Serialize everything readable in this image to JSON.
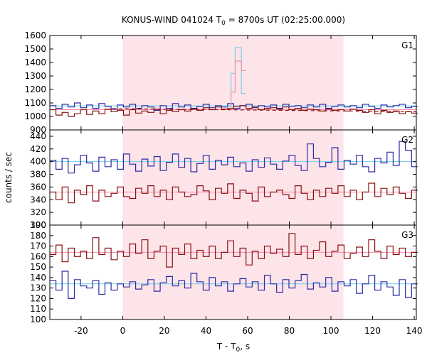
{
  "chart_data": {
    "type": "line",
    "title_main": "KONUS-WIND 041024 T",
    "title_sub": "0",
    "title_rest": " = 8700s UT (02:25:00.000)",
    "xlabel_main": "T - T",
    "xlabel_sub": "0",
    "xlabel_rest": ", s",
    "ylabel": "counts / sec",
    "xlim": [
      -35,
      141
    ],
    "xticks": [
      -20,
      0,
      20,
      40,
      60,
      80,
      100,
      120,
      140
    ],
    "shaded_interval": [
      0,
      106
    ],
    "colors": {
      "blue": "#2b2ba8",
      "dark_red": "#8b1010",
      "light_blue": "#6fcdea",
      "pink": "#f08aa8",
      "shade": "#fde4e8"
    },
    "panels": [
      {
        "label": "G1",
        "ylim": [
          900,
          1600
        ],
        "yticks": [
          900,
          1000,
          1100,
          1200,
          1300,
          1400,
          1500,
          1600
        ],
        "x_start": -35,
        "step": 2.944,
        "bg_blue": 1078,
        "bg_red": 1050,
        "series": [
          {
            "name": "blue",
            "color": "blue",
            "values": [
              1080,
              1060,
              1090,
              1070,
              1100,
              1065,
              1085,
              1060,
              1095,
              1075,
              1055,
              1085,
              1070,
              1090,
              1060,
              1080,
              1070,
              1045,
              1080,
              1060,
              1095,
              1070,
              1085,
              1060,
              1075,
              1090,
              1065,
              1080,
              1070,
              1095,
              1060,
              1080,
              1090,
              1065,
              1080,
              1070,
              1085,
              1060,
              1090,
              1075,
              1080,
              1065,
              1085,
              1070,
              1090,
              1060,
              1075,
              1085,
              1070,
              1080,
              1065,
              1090,
              1075,
              1060,
              1085,
              1070,
              1080,
              1090,
              1065,
              1075
            ]
          },
          {
            "name": "dark_red",
            "color": "dark_red",
            "values": [
              1050,
              1010,
              1030,
              1000,
              1020,
              1050,
              1015,
              1040,
              1020,
              1055,
              1035,
              1045,
              1010,
              1050,
              1025,
              1040,
              1030,
              1055,
              1020,
              1045,
              1035,
              1050,
              1040,
              1055,
              1045,
              1065,
              1050,
              1070,
              1055,
              1060,
              1075,
              1080,
              1060,
              1070,
              1050,
              1060,
              1065,
              1055,
              1070,
              1050,
              1060,
              1045,
              1055,
              1050,
              1040,
              1055,
              1045,
              1050,
              1040,
              1055,
              1045,
              1030,
              1050,
              1020,
              1045,
              1030,
              1040,
              1020,
              1035,
              1025
            ]
          }
        ],
        "thin": [
          {
            "name": "light_blue",
            "color": "light_blue",
            "x": [
              50,
              52,
              54,
              57,
              59
            ],
            "values": [
              1075,
              1320,
              1510,
              1170,
              1075
            ]
          },
          {
            "name": "pink",
            "color": "pink",
            "x": [
              50,
              52,
              54,
              57,
              59
            ],
            "values": [
              1050,
              1180,
              1410,
              1340,
              1050
            ]
          }
        ]
      },
      {
        "label": "G2",
        "ylim": [
          300,
          450
        ],
        "yticks": [
          300,
          320,
          340,
          360,
          380,
          400,
          420,
          440
        ],
        "x_start": -35,
        "step": 2.944,
        "bg_blue": 400,
        "bg_red": 352,
        "series": [
          {
            "name": "blue",
            "color": "blue",
            "values": [
              402,
              388,
              405,
              382,
              395,
              410,
              398,
              385,
              407,
              392,
              403,
              388,
              412,
              396,
              385,
              404,
              393,
              408,
              386,
              399,
              412,
              391,
              405,
              384,
              397,
              410,
              388,
              402,
              395,
              407,
              392,
              398,
              385,
              403,
              391,
              406,
              396,
              388,
              401,
              410,
              394,
              386,
              428,
              405,
              392,
              399,
              422,
              388,
              402,
              396,
              410,
              392,
              384,
              405,
              398,
              415,
              394,
              432,
              418,
              392
            ]
          },
          {
            "name": "dark_red",
            "color": "dark_red",
            "values": [
              352,
              340,
              360,
              335,
              355,
              348,
              362,
              338,
              355,
              345,
              350,
              360,
              345,
              342,
              358,
              350,
              362,
              345,
              355,
              340,
              360,
              352,
              345,
              348,
              362,
              354,
              340,
              358,
              350,
              365,
              342,
              355,
              350,
              338,
              360,
              345,
              352,
              355,
              348,
              342,
              362,
              350,
              340,
              355,
              345,
              358,
              350,
              362,
              345,
              355,
              340,
              352,
              366,
              345,
              358,
              348,
              360,
              350,
              342,
              355
            ]
          }
        ]
      },
      {
        "label": "G3",
        "ylim": [
          100,
          190
        ],
        "yticks": [
          100,
          110,
          120,
          130,
          140,
          150,
          160,
          170,
          180,
          190
        ],
        "x_start": -35,
        "step": 2.944,
        "bg_blue": 134,
        "bg_red": 164,
        "series": [
          {
            "name": "blue",
            "color": "blue",
            "values": [
              137,
              128,
              146,
              120,
              138,
              132,
              130,
              137,
              124,
              135,
              128,
              134,
              131,
              136,
              129,
              133,
              138,
              127,
              135,
              141,
              132,
              137,
              130,
              144,
              136,
              128,
              140,
              132,
              136,
              127,
              134,
              139,
              131,
              136,
              128,
              142,
              134,
              126,
              138,
              130,
              137,
              143,
              129,
              135,
              131,
              140,
              127,
              136,
              132,
              138,
              125,
              134,
              142,
              128,
              136,
              131,
              123,
              138,
              121,
              134
            ]
          },
          {
            "name": "dark_red",
            "color": "dark_red",
            "values": [
              162,
              171,
              155,
              168,
              160,
              165,
              158,
              178,
              162,
              168,
              157,
              165,
              160,
              172,
              163,
              176,
              158,
              165,
              170,
              150,
              168,
              162,
              172,
              158,
              166,
              160,
              170,
              158,
              164,
              175,
              160,
              168,
              152,
              165,
              158,
              170,
              163,
              167,
              160,
              182,
              162,
              170,
              158,
              166,
              174,
              160,
              165,
              171,
              158,
              163,
              169,
              160,
              176,
              165,
              158,
              170,
              162,
              168,
              160,
              164
            ]
          }
        ]
      }
    ]
  }
}
